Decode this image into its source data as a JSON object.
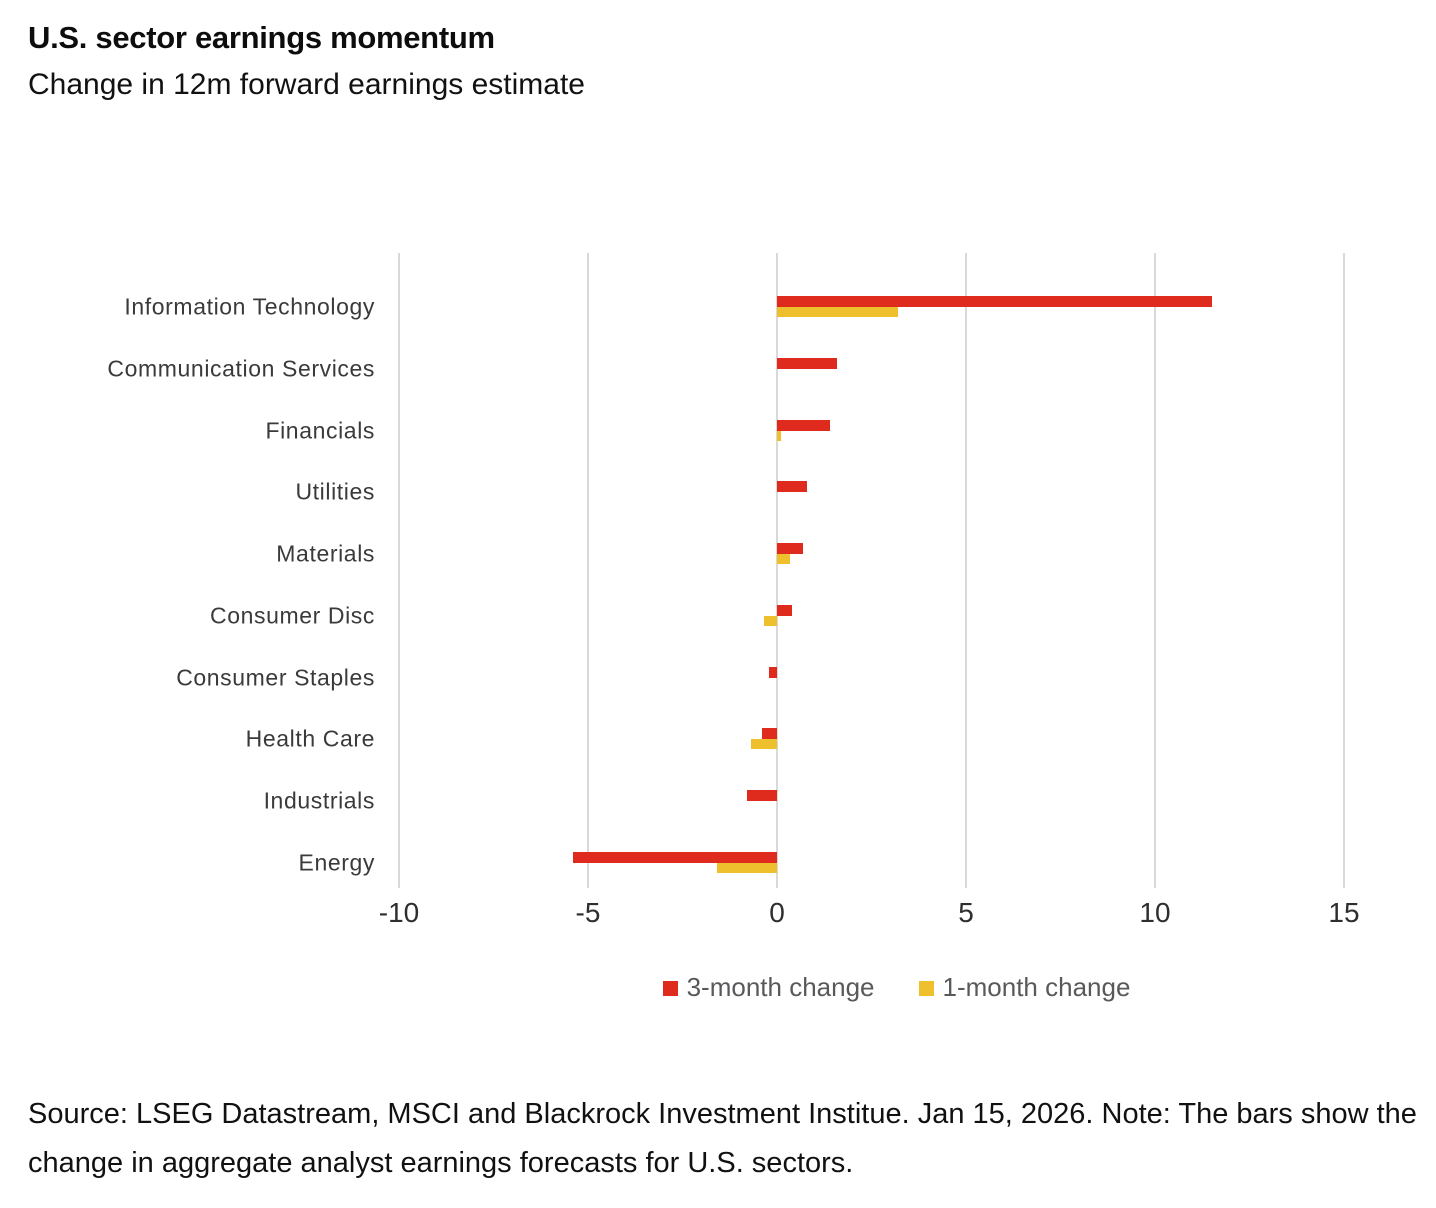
{
  "header": {
    "title": "U.S. sector earnings momentum",
    "subtitle": "Change in 12m forward earnings estimate"
  },
  "chart_data": {
    "type": "bar",
    "orientation": "horizontal",
    "title": "U.S. sector earnings momentum",
    "subtitle": "Change in 12m forward earnings estimate",
    "categories": [
      "Information Technology",
      "Communication Services",
      "Financials",
      "Utilities",
      "Materials",
      "Consumer Disc",
      "Consumer Staples",
      "Health Care",
      "Industrials",
      "Energy"
    ],
    "series": [
      {
        "name": "3-month change",
        "color": "#de2b1d",
        "values": [
          11.5,
          1.6,
          1.4,
          0.8,
          0.7,
          0.4,
          -0.2,
          -0.4,
          -0.8,
          -5.4
        ]
      },
      {
        "name": "1-month change",
        "color": "#eec02e",
        "values": [
          3.2,
          0,
          0.1,
          0,
          0.35,
          -0.35,
          0,
          -0.7,
          0,
          -1.6
        ]
      }
    ],
    "xlim": [
      -10,
      15
    ],
    "xticks": [
      -10,
      -5,
      0,
      5,
      10,
      15
    ],
    "grid": "vertical-only",
    "gridline_color": "#d9d9d9",
    "legend_position": "bottom"
  },
  "footer": {
    "source_note": "Source: LSEG Datastream, MSCI and Blackrock Investment Institue. Jan 15, 2026. Note: The bars show the change in aggregate analyst earnings forecasts for U.S. sectors."
  }
}
